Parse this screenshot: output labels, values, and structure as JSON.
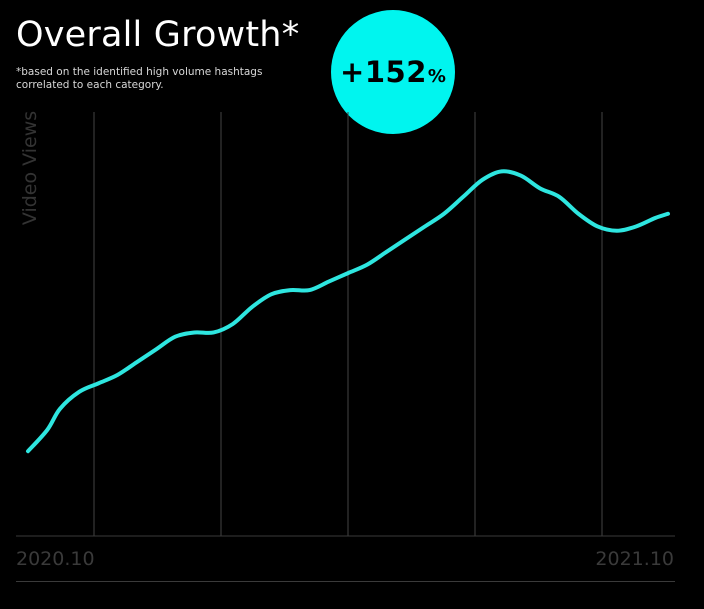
{
  "header": {
    "title": "Overall Growth*",
    "footnote": "*based on the identified high volume hashtags correlated to each category."
  },
  "badge": {
    "value": "+152",
    "unit": "%",
    "color": "#00f5ef"
  },
  "chart_data": {
    "type": "line",
    "ylabel": "Video Views",
    "x_tick_labels": [
      "2020.10",
      "2021.10"
    ],
    "x": [
      0,
      0.03,
      0.05,
      0.08,
      0.11,
      0.14,
      0.17,
      0.2,
      0.23,
      0.26,
      0.29,
      0.32,
      0.35,
      0.38,
      0.41,
      0.44,
      0.47,
      0.5,
      0.53,
      0.56,
      0.59,
      0.62,
      0.65,
      0.68,
      0.71,
      0.74,
      0.77,
      0.8,
      0.83,
      0.86,
      0.89,
      0.92,
      0.95,
      0.98,
      1.0
    ],
    "series": [
      {
        "values": [
          0.2,
          0.25,
          0.3,
          0.34,
          0.36,
          0.38,
          0.41,
          0.44,
          0.47,
          0.48,
          0.48,
          0.5,
          0.54,
          0.57,
          0.58,
          0.58,
          0.6,
          0.62,
          0.64,
          0.67,
          0.7,
          0.73,
          0.76,
          0.8,
          0.84,
          0.86,
          0.85,
          0.82,
          0.8,
          0.76,
          0.73,
          0.72,
          0.73,
          0.75,
          0.76
        ],
        "color": "#2ee6e0"
      }
    ],
    "ylim": [
      0,
      1
    ],
    "grid": "vertical",
    "colors": {
      "gridline": "#444444",
      "baseline": "#3a3a3a"
    }
  }
}
